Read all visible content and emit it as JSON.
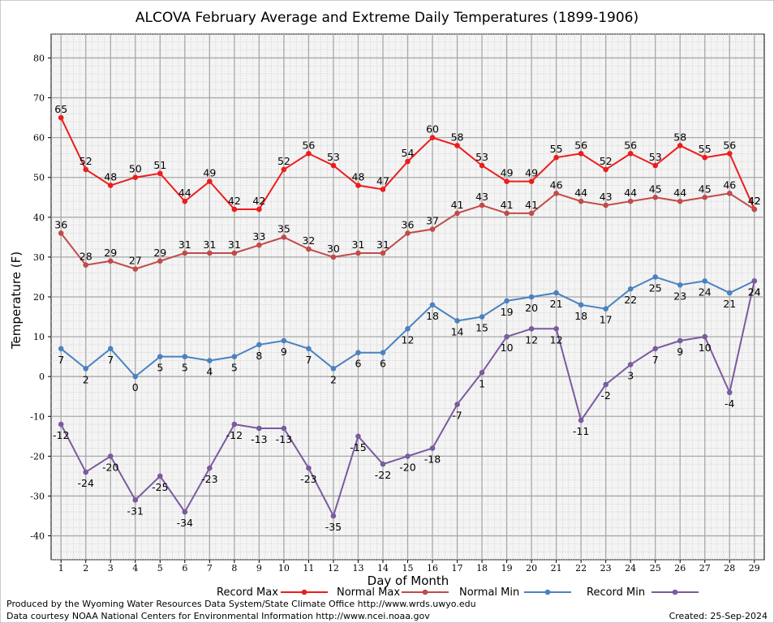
{
  "chart_data": {
    "type": "line",
    "title": "ALCOVA February Average and Extreme Daily Temperatures (1899-1906)",
    "xlabel": "Day of Month",
    "ylabel": "Temperature (F)",
    "x": [
      1,
      2,
      3,
      4,
      5,
      6,
      7,
      8,
      9,
      10,
      11,
      12,
      13,
      14,
      15,
      16,
      17,
      18,
      19,
      20,
      21,
      22,
      23,
      24,
      25,
      26,
      27,
      28,
      29
    ],
    "xlim": [
      0.6,
      29.4
    ],
    "ylim": [
      -46,
      86
    ],
    "yticks": [
      -40,
      -30,
      -20,
      -10,
      0,
      10,
      20,
      30,
      40,
      50,
      60,
      70,
      80
    ],
    "grid": true,
    "legend_position": "bottom",
    "series": [
      {
        "name": "Record Max",
        "color": "#ee1c1c",
        "values": [
          65,
          52,
          48,
          50,
          51,
          44,
          49,
          42,
          42,
          52,
          56,
          53,
          48,
          47,
          54,
          60,
          58,
          53,
          49,
          49,
          55,
          56,
          52,
          56,
          53,
          58,
          55,
          56,
          42
        ]
      },
      {
        "name": "Normal Max",
        "color": "#c24a4a",
        "values": [
          36,
          28,
          29,
          27,
          29,
          31,
          31,
          31,
          33,
          35,
          32,
          30,
          31,
          31,
          36,
          37,
          41,
          43,
          41,
          41,
          46,
          44,
          43,
          44,
          45,
          44,
          45,
          46,
          42
        ]
      },
      {
        "name": "Normal Min",
        "color": "#4a82c0",
        "values": [
          7,
          2,
          7,
          0,
          5,
          5,
          4,
          5,
          8,
          9,
          7,
          2,
          6,
          6,
          12,
          18,
          14,
          15,
          19,
          20,
          21,
          18,
          17,
          22,
          25,
          23,
          24,
          21,
          24
        ]
      },
      {
        "name": "Record Min",
        "color": "#7b5a9e",
        "values": [
          -12,
          -24,
          -20,
          -31,
          -25,
          -34,
          -23,
          -12,
          -13,
          -13,
          -23,
          -35,
          -15,
          -22,
          -20,
          -18,
          -7,
          1,
          10,
          12,
          12,
          -11,
          -2,
          3,
          7,
          9,
          10,
          -4,
          24
        ]
      }
    ]
  },
  "footer": {
    "produced_by": "Produced by the Wyoming Water Resources Data System/State Climate Office http://www.wrds.uwyo.edu",
    "data_courtesy": "Data courtesy NOAA National Centers for Environmental Information http://www.ncei.noaa.gov",
    "created": "Created:  25-Sep-2024"
  }
}
